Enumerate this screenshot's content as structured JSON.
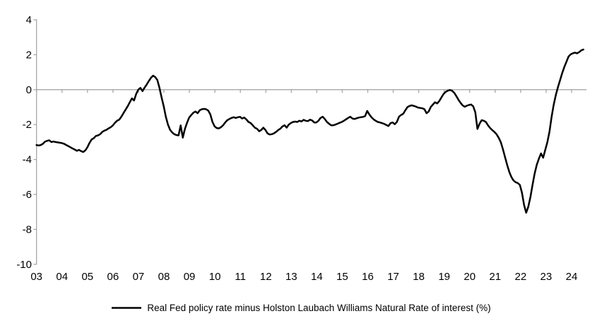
{
  "chart_data": {
    "type": "line",
    "title": "",
    "legend": "Real Fed policy rate minus Holston Laubach Williams Natural Rate of interest (%)",
    "frequency": "monthly",
    "x_start": "2003-01",
    "x_end": "2024-07",
    "x_tick_labels": [
      "03",
      "04",
      "05",
      "06",
      "07",
      "08",
      "09",
      "10",
      "11",
      "12",
      "13",
      "14",
      "15",
      "16",
      "17",
      "18",
      "19",
      "20",
      "21",
      "22",
      "23",
      "24"
    ],
    "y_ticks": [
      4,
      2,
      0,
      -2,
      -4,
      -6,
      -8,
      -10
    ],
    "ylim": [
      -10,
      4
    ],
    "grid": "zero-line-only",
    "legend_position": "bottom-center",
    "line_color": "#000000",
    "axis_color": "#a6a6a6",
    "label_color": "#000000",
    "series": [
      {
        "name": "Real Fed policy rate minus Holston Laubach Williams Natural Rate of interest (%)",
        "values": [
          -3.17,
          -3.2,
          -3.17,
          -3.1,
          -2.98,
          -2.93,
          -2.9,
          -3.0,
          -2.97,
          -3.0,
          -3.02,
          -3.04,
          -3.06,
          -3.1,
          -3.17,
          -3.23,
          -3.3,
          -3.37,
          -3.43,
          -3.5,
          -3.45,
          -3.52,
          -3.57,
          -3.48,
          -3.3,
          -3.05,
          -2.85,
          -2.78,
          -2.65,
          -2.62,
          -2.55,
          -2.42,
          -2.35,
          -2.3,
          -2.22,
          -2.15,
          -2.05,
          -1.9,
          -1.78,
          -1.72,
          -1.55,
          -1.35,
          -1.15,
          -0.95,
          -0.72,
          -0.5,
          -0.62,
          -0.25,
          0.0,
          0.1,
          -0.08,
          0.12,
          0.3,
          0.5,
          0.68,
          0.8,
          0.72,
          0.55,
          0.1,
          -0.45,
          -0.95,
          -1.55,
          -2.0,
          -2.3,
          -2.45,
          -2.55,
          -2.6,
          -2.62,
          -2.05,
          -2.75,
          -2.25,
          -1.9,
          -1.6,
          -1.45,
          -1.32,
          -1.25,
          -1.35,
          -1.18,
          -1.12,
          -1.1,
          -1.12,
          -1.2,
          -1.42,
          -1.85,
          -2.1,
          -2.2,
          -2.22,
          -2.15,
          -2.04,
          -1.88,
          -1.75,
          -1.68,
          -1.62,
          -1.58,
          -1.62,
          -1.58,
          -1.56,
          -1.65,
          -1.6,
          -1.71,
          -1.85,
          -1.91,
          -2.04,
          -2.18,
          -2.24,
          -2.38,
          -2.31,
          -2.18,
          -2.31,
          -2.51,
          -2.57,
          -2.55,
          -2.5,
          -2.42,
          -2.31,
          -2.24,
          -2.11,
          -2.04,
          -2.18,
          -2.0,
          -1.91,
          -1.85,
          -1.83,
          -1.85,
          -1.78,
          -1.82,
          -1.73,
          -1.78,
          -1.8,
          -1.72,
          -1.76,
          -1.88,
          -1.88,
          -1.78,
          -1.62,
          -1.55,
          -1.68,
          -1.85,
          -1.95,
          -2.04,
          -2.04,
          -2.0,
          -1.95,
          -1.9,
          -1.85,
          -1.78,
          -1.7,
          -1.62,
          -1.55,
          -1.65,
          -1.68,
          -1.64,
          -1.6,
          -1.58,
          -1.56,
          -1.52,
          -1.22,
          -1.42,
          -1.58,
          -1.7,
          -1.78,
          -1.85,
          -1.88,
          -1.92,
          -1.96,
          -2.02,
          -2.08,
          -1.92,
          -1.88,
          -1.98,
          -1.85,
          -1.55,
          -1.45,
          -1.38,
          -1.18,
          -1.0,
          -0.93,
          -0.9,
          -0.93,
          -0.97,
          -1.03,
          -1.05,
          -1.07,
          -1.12,
          -1.35,
          -1.25,
          -0.99,
          -0.85,
          -0.72,
          -0.79,
          -0.65,
          -0.45,
          -0.25,
          -0.13,
          -0.06,
          -0.02,
          -0.06,
          -0.17,
          -0.36,
          -0.57,
          -0.75,
          -0.9,
          -0.98,
          -0.92,
          -0.88,
          -0.85,
          -0.95,
          -1.3,
          -2.25,
          -1.95,
          -1.75,
          -1.78,
          -1.85,
          -2.05,
          -2.2,
          -2.32,
          -2.42,
          -2.55,
          -2.75,
          -3.0,
          -3.4,
          -3.85,
          -4.3,
          -4.7,
          -5.0,
          -5.2,
          -5.3,
          -5.35,
          -5.45,
          -5.9,
          -6.6,
          -7.05,
          -6.7,
          -6.15,
          -5.45,
          -4.8,
          -4.3,
          -3.95,
          -3.65,
          -3.9,
          -3.45,
          -3.0,
          -2.4,
          -1.55,
          -0.85,
          -0.3,
          0.15,
          0.55,
          0.95,
          1.3,
          1.6,
          1.9,
          2.02,
          2.08,
          2.12,
          2.08,
          2.15,
          2.25,
          2.3
        ]
      }
    ]
  }
}
